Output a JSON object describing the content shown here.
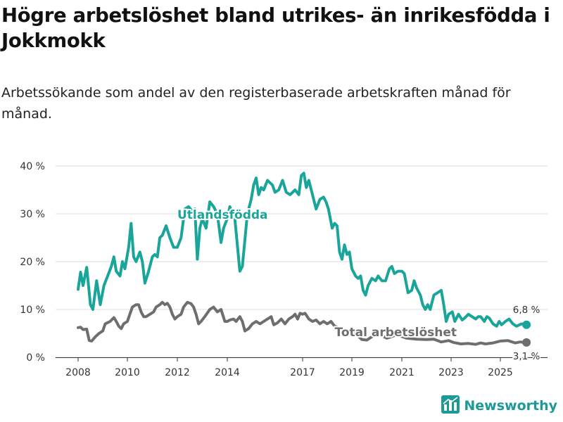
{
  "title": "Högre arbetslöshet bland utrikes- än inrikesfödda i Jokkmokk",
  "subtitle": "Arbetssökande som andel av den registerbaserade arbetskraften månad för månad.",
  "brand": {
    "name": "Newsworthy",
    "icon": "bar-chart-logo-icon",
    "color": "#1d9a98"
  },
  "colors": {
    "foreign": "#1aa59a",
    "total": "#6e6e6e",
    "grid": "#dddddd"
  },
  "chart_data": {
    "type": "line",
    "title": "Högre arbetslöshet bland utrikes- än inrikesfödda i Jokkmokk",
    "xlabel": "",
    "ylabel": "",
    "xlim": [
      2008.0,
      2026.5
    ],
    "ylim": [
      0,
      40
    ],
    "grid": true,
    "x_ticks": [
      {
        "value": 2008,
        "label": "2008"
      },
      {
        "value": 2010,
        "label": "2010"
      },
      {
        "value": 2012,
        "label": "2012"
      },
      {
        "value": 2014,
        "label": "2014"
      },
      {
        "value": 2017,
        "label": "2017"
      },
      {
        "value": 2019,
        "label": "2019"
      },
      {
        "value": 2021,
        "label": "2021"
      },
      {
        "value": 2023,
        "label": "2023"
      },
      {
        "value": 2025,
        "label": "2025"
      }
    ],
    "y_ticks": [
      {
        "value": 0,
        "label": "0 %"
      },
      {
        "value": 10,
        "label": "10 %"
      },
      {
        "value": 20,
        "label": "20 %"
      },
      {
        "value": 30,
        "label": "30 %"
      },
      {
        "value": 40,
        "label": "40 %"
      }
    ],
    "series": [
      {
        "name": "Utlandsfödda",
        "label_anchor": {
          "x": 2012.0,
          "y": 29
        },
        "end_label": "6,8 %",
        "points": [
          [
            2008.0,
            14.2
          ],
          [
            2008.1,
            17.8
          ],
          [
            2008.2,
            15.0
          ],
          [
            2008.35,
            18.8
          ],
          [
            2008.5,
            11.0
          ],
          [
            2008.6,
            10.0
          ],
          [
            2008.75,
            16.0
          ],
          [
            2008.9,
            11.0
          ],
          [
            2009.05,
            15.0
          ],
          [
            2009.2,
            17.0
          ],
          [
            2009.35,
            19.0
          ],
          [
            2009.45,
            21.0
          ],
          [
            2009.55,
            18.0
          ],
          [
            2009.7,
            17.0
          ],
          [
            2009.8,
            20.0
          ],
          [
            2009.9,
            18.5
          ],
          [
            2010.05,
            23.0
          ],
          [
            2010.15,
            28.0
          ],
          [
            2010.25,
            21.0
          ],
          [
            2010.35,
            20.0
          ],
          [
            2010.5,
            22.0
          ],
          [
            2010.6,
            20.0
          ],
          [
            2010.7,
            15.5
          ],
          [
            2010.85,
            18.0
          ],
          [
            2011.0,
            21.0
          ],
          [
            2011.1,
            21.5
          ],
          [
            2011.2,
            21.0
          ],
          [
            2011.3,
            25.0
          ],
          [
            2011.4,
            25.5
          ],
          [
            2011.55,
            27.5
          ],
          [
            2011.7,
            25.0
          ],
          [
            2011.85,
            23.0
          ],
          [
            2012.0,
            23.0
          ],
          [
            2012.15,
            25.0
          ],
          [
            2012.3,
            31.0
          ],
          [
            2012.45,
            31.5
          ],
          [
            2012.6,
            30.5
          ],
          [
            2012.7,
            31.0
          ],
          [
            2012.8,
            20.5
          ],
          [
            2012.9,
            27.0
          ],
          [
            2013.0,
            29.0
          ],
          [
            2013.15,
            27.0
          ],
          [
            2013.3,
            32.5
          ],
          [
            2013.45,
            31.5
          ],
          [
            2013.6,
            30.0
          ],
          [
            2013.75,
            24.0
          ],
          [
            2013.85,
            27.0
          ],
          [
            2014.0,
            29.0
          ],
          [
            2014.1,
            31.5
          ],
          [
            2014.2,
            30.0
          ],
          [
            2014.3,
            29.0
          ],
          [
            2014.5,
            18.0
          ],
          [
            2014.6,
            19.0
          ],
          [
            2014.8,
            30.0
          ],
          [
            2014.95,
            33.0
          ],
          [
            2015.05,
            36.0
          ],
          [
            2015.15,
            37.5
          ],
          [
            2015.25,
            34.0
          ],
          [
            2015.35,
            35.5
          ],
          [
            2015.45,
            35.0
          ],
          [
            2015.6,
            37.0
          ],
          [
            2015.8,
            36.0
          ],
          [
            2015.9,
            34.5
          ],
          [
            2016.05,
            35.0
          ],
          [
            2016.2,
            37.0
          ],
          [
            2016.35,
            34.5
          ],
          [
            2016.5,
            34.0
          ],
          [
            2016.7,
            35.0
          ],
          [
            2016.85,
            34.0
          ],
          [
            2016.95,
            38.0
          ],
          [
            2017.05,
            38.5
          ],
          [
            2017.15,
            35.5
          ],
          [
            2017.25,
            37.0
          ],
          [
            2017.4,
            34.0
          ],
          [
            2017.55,
            31.0
          ],
          [
            2017.7,
            33.0
          ],
          [
            2017.85,
            33.5
          ],
          [
            2017.95,
            32.5
          ],
          [
            2018.05,
            31.0
          ],
          [
            2018.2,
            27.0
          ],
          [
            2018.3,
            28.0
          ],
          [
            2018.4,
            27.5
          ],
          [
            2018.5,
            22.0
          ],
          [
            2018.6,
            20.5
          ],
          [
            2018.7,
            23.5
          ],
          [
            2018.8,
            21.5
          ],
          [
            2018.9,
            22.0
          ],
          [
            2019.0,
            18.5
          ],
          [
            2019.15,
            17.0
          ],
          [
            2019.25,
            16.5
          ],
          [
            2019.35,
            17.0
          ],
          [
            2019.45,
            14.0
          ],
          [
            2019.55,
            13.0
          ],
          [
            2019.65,
            15.0
          ],
          [
            2019.8,
            16.5
          ],
          [
            2019.95,
            16.0
          ],
          [
            2020.05,
            17.0
          ],
          [
            2020.2,
            16.0
          ],
          [
            2020.35,
            16.0
          ],
          [
            2020.5,
            18.5
          ],
          [
            2020.6,
            19.0
          ],
          [
            2020.7,
            17.5
          ],
          [
            2020.85,
            18.0
          ],
          [
            2021.0,
            18.0
          ],
          [
            2021.1,
            17.5
          ],
          [
            2021.25,
            13.5
          ],
          [
            2021.4,
            14.0
          ],
          [
            2021.5,
            16.0
          ],
          [
            2021.6,
            14.5
          ],
          [
            2021.75,
            13.0
          ],
          [
            2021.85,
            11.0
          ],
          [
            2021.95,
            10.0
          ],
          [
            2022.05,
            11.0
          ],
          [
            2022.15,
            10.0
          ],
          [
            2022.3,
            13.0
          ],
          [
            2022.45,
            13.5
          ],
          [
            2022.6,
            14.0
          ],
          [
            2022.7,
            11.0
          ],
          [
            2022.8,
            7.5
          ],
          [
            2022.9,
            9.0
          ],
          [
            2023.05,
            9.5
          ],
          [
            2023.15,
            7.5
          ],
          [
            2023.3,
            9.0
          ],
          [
            2023.45,
            7.8
          ],
          [
            2023.55,
            8.2
          ],
          [
            2023.7,
            9.0
          ],
          [
            2023.85,
            8.5
          ],
          [
            2024.0,
            8.0
          ],
          [
            2024.1,
            8.5
          ],
          [
            2024.2,
            8.5
          ],
          [
            2024.35,
            7.5
          ],
          [
            2024.45,
            8.5
          ],
          [
            2024.55,
            8.2
          ],
          [
            2024.7,
            7.0
          ],
          [
            2024.85,
            6.5
          ],
          [
            2024.95,
            7.5
          ],
          [
            2025.05,
            6.8
          ],
          [
            2025.2,
            7.5
          ],
          [
            2025.35,
            8.0
          ],
          [
            2025.5,
            7.0
          ],
          [
            2025.65,
            6.5
          ],
          [
            2025.85,
            7.0
          ],
          [
            2026.05,
            6.8
          ]
        ]
      },
      {
        "name": "Total arbetslöshet",
        "label_anchor": {
          "x": 2018.3,
          "y": 4.4
        },
        "end_label": "3,1 %",
        "points": [
          [
            2008.0,
            6.2
          ],
          [
            2008.1,
            6.3
          ],
          [
            2008.2,
            5.8
          ],
          [
            2008.35,
            5.9
          ],
          [
            2008.45,
            3.5
          ],
          [
            2008.55,
            3.4
          ],
          [
            2008.7,
            4.3
          ],
          [
            2008.85,
            5.0
          ],
          [
            2009.0,
            5.5
          ],
          [
            2009.1,
            7.0
          ],
          [
            2009.3,
            7.5
          ],
          [
            2009.45,
            8.3
          ],
          [
            2009.55,
            7.5
          ],
          [
            2009.65,
            6.5
          ],
          [
            2009.75,
            6.0
          ],
          [
            2009.85,
            7.0
          ],
          [
            2010.0,
            7.5
          ],
          [
            2010.1,
            9.0
          ],
          [
            2010.2,
            10.5
          ],
          [
            2010.35,
            11.0
          ],
          [
            2010.45,
            11.0
          ],
          [
            2010.55,
            9.5
          ],
          [
            2010.65,
            8.5
          ],
          [
            2010.75,
            8.5
          ],
          [
            2010.9,
            9.0
          ],
          [
            2011.05,
            9.5
          ],
          [
            2011.15,
            10.5
          ],
          [
            2011.3,
            11.0
          ],
          [
            2011.4,
            11.5
          ],
          [
            2011.5,
            11.0
          ],
          [
            2011.6,
            11.3
          ],
          [
            2011.7,
            10.5
          ],
          [
            2011.8,
            9.0
          ],
          [
            2011.9,
            8.0
          ],
          [
            2012.0,
            8.5
          ],
          [
            2012.15,
            9.0
          ],
          [
            2012.25,
            10.5
          ],
          [
            2012.4,
            11.5
          ],
          [
            2012.55,
            11.2
          ],
          [
            2012.65,
            10.5
          ],
          [
            2012.75,
            9.0
          ],
          [
            2012.85,
            7.0
          ],
          [
            2012.95,
            7.5
          ],
          [
            2013.1,
            8.5
          ],
          [
            2013.3,
            10.0
          ],
          [
            2013.45,
            10.5
          ],
          [
            2013.6,
            9.5
          ],
          [
            2013.75,
            10.0
          ],
          [
            2013.9,
            7.5
          ],
          [
            2014.0,
            7.5
          ],
          [
            2014.1,
            7.8
          ],
          [
            2014.25,
            8.0
          ],
          [
            2014.35,
            7.5
          ],
          [
            2014.5,
            8.5
          ],
          [
            2014.6,
            7.5
          ],
          [
            2014.7,
            5.5
          ],
          [
            2014.85,
            6.0
          ],
          [
            2015.0,
            7.0
          ],
          [
            2015.15,
            7.5
          ],
          [
            2015.3,
            7.0
          ],
          [
            2015.45,
            7.5
          ],
          [
            2015.6,
            8.0
          ],
          [
            2015.75,
            8.5
          ],
          [
            2015.85,
            6.8
          ],
          [
            2016.0,
            7.2
          ],
          [
            2016.15,
            8.0
          ],
          [
            2016.3,
            7.0
          ],
          [
            2016.45,
            8.0
          ],
          [
            2016.6,
            8.5
          ],
          [
            2016.7,
            9.0
          ],
          [
            2016.8,
            8.0
          ],
          [
            2016.9,
            9.2
          ],
          [
            2017.0,
            9.0
          ],
          [
            2017.1,
            9.2
          ],
          [
            2017.25,
            8.0
          ],
          [
            2017.4,
            7.5
          ],
          [
            2017.55,
            7.8
          ],
          [
            2017.7,
            7.0
          ],
          [
            2017.85,
            7.5
          ],
          [
            2018.0,
            7.0
          ],
          [
            2018.15,
            7.5
          ],
          [
            2018.3,
            6.5
          ],
          [
            2019.2,
            4.7
          ],
          [
            2019.4,
            3.7
          ],
          [
            2019.6,
            3.6
          ],
          [
            2020.0,
            5.0
          ],
          [
            2020.4,
            4.0
          ],
          [
            2020.8,
            4.7
          ],
          [
            2021.2,
            4.0
          ],
          [
            2021.6,
            3.8
          ],
          [
            2022.0,
            3.7
          ],
          [
            2022.3,
            3.8
          ],
          [
            2022.6,
            3.2
          ],
          [
            2022.9,
            3.5
          ],
          [
            2023.1,
            3.1
          ],
          [
            2023.4,
            2.8
          ],
          [
            2023.7,
            2.9
          ],
          [
            2024.0,
            2.7
          ],
          [
            2024.2,
            3.0
          ],
          [
            2024.4,
            2.8
          ],
          [
            2024.7,
            3.0
          ],
          [
            2025.0,
            3.4
          ],
          [
            2025.3,
            3.5
          ],
          [
            2025.6,
            3.0
          ],
          [
            2025.8,
            3.2
          ],
          [
            2026.05,
            3.1
          ]
        ]
      }
    ]
  }
}
